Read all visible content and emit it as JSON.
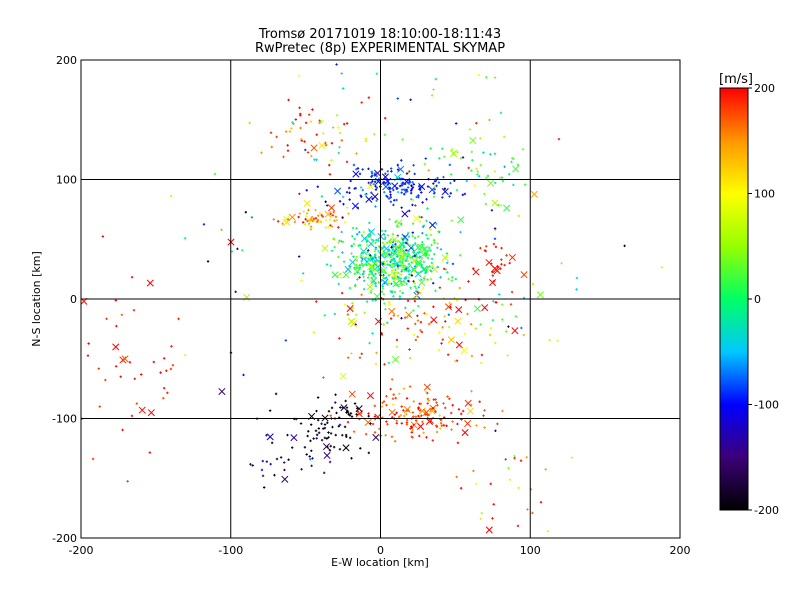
{
  "chart_data": {
    "type": "scatter",
    "title": "Tromsø 20171019 18:10:00-18:11:43",
    "subtitle": "RwPretec (8p) EXPERIMENTAL SKYMAP",
    "xlabel": "E-W location [km]",
    "ylabel": "N-S location [km]",
    "xlim": [
      -200,
      200
    ],
    "ylim": [
      -200,
      200
    ],
    "x_ticks": [
      "-200",
      "-100",
      "0",
      "100",
      "200"
    ],
    "y_ticks": [
      "-200",
      "-100",
      "0",
      "100",
      "200"
    ],
    "grid_lines": [
      -100,
      0,
      100
    ],
    "colorbar": {
      "label": "[m/s]",
      "range": [
        -200,
        200
      ],
      "ticks": [
        "200",
        "100",
        "0",
        "-100",
        "-200"
      ],
      "colormap": [
        "#000000",
        "#3c0078",
        "#0000ff",
        "#00c8ff",
        "#00ff64",
        "#96ff00",
        "#ffff00",
        "#ff9600",
        "#ff0000"
      ]
    },
    "marker_legend": {
      "small": "plus",
      "large": "cross"
    },
    "clusters": [
      {
        "x": 8,
        "y": 32,
        "sx": 18,
        "sy": 14,
        "n": 520,
        "v": 0,
        "sv": 40
      },
      {
        "x": 10,
        "y": 95,
        "sx": 18,
        "sy": 8,
        "n": 160,
        "v": -95,
        "sv": 25
      },
      {
        "x": -45,
        "y": 68,
        "sx": 12,
        "sy": 4,
        "n": 60,
        "v": 150,
        "sv": 40
      },
      {
        "x": 22,
        "y": -98,
        "sx": 22,
        "sy": 10,
        "n": 150,
        "v": 180,
        "sv": 25
      },
      {
        "x": -30,
        "y": -105,
        "sx": 14,
        "sy": 12,
        "n": 70,
        "v": -200,
        "sv": 20
      },
      {
        "x": -55,
        "y": -130,
        "sx": 20,
        "sy": 14,
        "n": 40,
        "v": -160,
        "sv": 30
      },
      {
        "x": -170,
        "y": -60,
        "sx": 22,
        "sy": 40,
        "n": 45,
        "v": 195,
        "sv": 15
      },
      {
        "x": 65,
        "y": 110,
        "sx": 18,
        "sy": 20,
        "n": 50,
        "v": 30,
        "sv": 30
      },
      {
        "x": 80,
        "y": 30,
        "sx": 6,
        "sy": 8,
        "n": 25,
        "v": 195,
        "sv": 10
      },
      {
        "x": 30,
        "y": -20,
        "sx": 35,
        "sy": 20,
        "n": 120,
        "v": 130,
        "sv": 80
      },
      {
        "x": -40,
        "y": 140,
        "sx": 20,
        "sy": 15,
        "n": 50,
        "v": 170,
        "sv": 50
      },
      {
        "x": 10,
        "y": 60,
        "sx": 60,
        "sy": 70,
        "n": 160,
        "v": 0,
        "sv": 110
      },
      {
        "x": 85,
        "y": -160,
        "sx": 20,
        "sy": 25,
        "n": 30,
        "v": 150,
        "sv": 80
      }
    ]
  }
}
